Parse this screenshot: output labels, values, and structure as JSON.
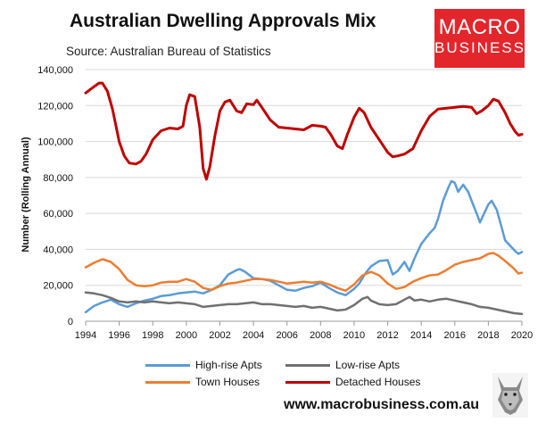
{
  "chart_data": {
    "type": "line",
    "title": "Australian Dwelling Approvals Mix",
    "subtitle": "Source: Australian Bureau of Statistics",
    "ylabel": "Number (Rolling Annual)",
    "xlabel": "",
    "xlim": [
      1994,
      2020
    ],
    "ylim": [
      0,
      140000
    ],
    "x_ticks": [
      1994,
      1996,
      1998,
      2000,
      2002,
      2004,
      2006,
      2008,
      2010,
      2012,
      2014,
      2016,
      2018,
      2020
    ],
    "x_tick_labels": [
      "1994",
      "1996",
      "1998",
      "2000",
      "2002",
      "2004",
      "2006",
      "2008",
      "2010",
      "2012",
      "2014",
      "2016",
      "2018",
      "2020"
    ],
    "y_ticks": [
      0,
      20000,
      40000,
      60000,
      80000,
      100000,
      120000,
      140000
    ],
    "y_tick_labels": [
      "0",
      "20,000",
      "40,000",
      "60,000",
      "80,000",
      "100,000",
      "120,000",
      "140,000"
    ],
    "legend_position": "bottom",
    "series": [
      {
        "name": "High-rise Apts",
        "color": "#5b9bd5",
        "points": [
          [
            1994,
            5000
          ],
          [
            1994.5,
            8500
          ],
          [
            1995,
            10500
          ],
          [
            1995.5,
            12000
          ],
          [
            1996,
            9500
          ],
          [
            1996.5,
            8000
          ],
          [
            1997,
            10000
          ],
          [
            1997.5,
            11500
          ],
          [
            1998,
            12500
          ],
          [
            1998.5,
            14000
          ],
          [
            1999,
            14500
          ],
          [
            1999.5,
            15500
          ],
          [
            2000,
            16000
          ],
          [
            2000.5,
            16500
          ],
          [
            2001,
            15500
          ],
          [
            2001.5,
            17500
          ],
          [
            2002,
            20000
          ],
          [
            2002.5,
            26000
          ],
          [
            2003,
            28500
          ],
          [
            2003.2,
            29000
          ],
          [
            2003.5,
            27500
          ],
          [
            2004,
            24000
          ],
          [
            2004.5,
            23500
          ],
          [
            2005,
            22500
          ],
          [
            2005.5,
            20000
          ],
          [
            2006,
            17500
          ],
          [
            2006.5,
            17000
          ],
          [
            2007,
            18500
          ],
          [
            2007.5,
            19500
          ],
          [
            2008,
            21500
          ],
          [
            2008.5,
            18500
          ],
          [
            2009,
            16000
          ],
          [
            2009.5,
            14500
          ],
          [
            2010,
            18000
          ],
          [
            2010.3,
            21000
          ],
          [
            2010.7,
            27000
          ],
          [
            2011,
            30500
          ],
          [
            2011.5,
            33500
          ],
          [
            2012,
            34000
          ],
          [
            2012.3,
            26000
          ],
          [
            2012.6,
            28000
          ],
          [
            2013,
            33000
          ],
          [
            2013.3,
            28000
          ],
          [
            2013.6,
            35000
          ],
          [
            2014,
            43000
          ],
          [
            2014.5,
            49000
          ],
          [
            2014.8,
            52000
          ],
          [
            2015,
            57000
          ],
          [
            2015.3,
            67000
          ],
          [
            2015.6,
            74000
          ],
          [
            2015.8,
            78000
          ],
          [
            2016,
            77000
          ],
          [
            2016.2,
            72000
          ],
          [
            2016.5,
            76000
          ],
          [
            2016.8,
            72000
          ],
          [
            2017,
            67000
          ],
          [
            2017.3,
            60000
          ],
          [
            2017.5,
            55000
          ],
          [
            2017.7,
            59000
          ],
          [
            2018,
            65000
          ],
          [
            2018.2,
            67000
          ],
          [
            2018.5,
            62000
          ],
          [
            2018.8,
            52000
          ],
          [
            2019,
            45000
          ],
          [
            2019.3,
            42000
          ],
          [
            2019.6,
            39000
          ],
          [
            2019.8,
            37500
          ],
          [
            2020,
            38500
          ]
        ]
      },
      {
        "name": "Low-rise Apts",
        "color": "#707070",
        "points": [
          [
            1994,
            16000
          ],
          [
            1994.5,
            15500
          ],
          [
            1995,
            14500
          ],
          [
            1995.5,
            13000
          ],
          [
            1996,
            11000
          ],
          [
            1996.5,
            10500
          ],
          [
            1997,
            11000
          ],
          [
            1997.5,
            10500
          ],
          [
            1998,
            11000
          ],
          [
            1998.5,
            10500
          ],
          [
            1999,
            10000
          ],
          [
            1999.5,
            10500
          ],
          [
            2000,
            10000
          ],
          [
            2000.5,
            9500
          ],
          [
            2001,
            8000
          ],
          [
            2001.5,
            8500
          ],
          [
            2002,
            9000
          ],
          [
            2002.5,
            9500
          ],
          [
            2003,
            9500
          ],
          [
            2003.5,
            10000
          ],
          [
            2004,
            10500
          ],
          [
            2004.5,
            9500
          ],
          [
            2005,
            9500
          ],
          [
            2005.5,
            9000
          ],
          [
            2006,
            8500
          ],
          [
            2006.5,
            8000
          ],
          [
            2007,
            8500
          ],
          [
            2007.5,
            7500
          ],
          [
            2008,
            8000
          ],
          [
            2008.5,
            7000
          ],
          [
            2009,
            6000
          ],
          [
            2009.5,
            6500
          ],
          [
            2010,
            9000
          ],
          [
            2010.5,
            12500
          ],
          [
            2010.8,
            13500
          ],
          [
            2011,
            11500
          ],
          [
            2011.5,
            9500
          ],
          [
            2012,
            9000
          ],
          [
            2012.5,
            9500
          ],
          [
            2013,
            12000
          ],
          [
            2013.3,
            13500
          ],
          [
            2013.6,
            11500
          ],
          [
            2014,
            12000
          ],
          [
            2014.5,
            11000
          ],
          [
            2015,
            12000
          ],
          [
            2015.5,
            12500
          ],
          [
            2016,
            11500
          ],
          [
            2016.5,
            10500
          ],
          [
            2017,
            9500
          ],
          [
            2017.5,
            8000
          ],
          [
            2018,
            7500
          ],
          [
            2018.5,
            6500
          ],
          [
            2019,
            5500
          ],
          [
            2019.5,
            4500
          ],
          [
            2020,
            4000
          ]
        ]
      },
      {
        "name": "Town Houses",
        "color": "#ed7d31",
        "points": [
          [
            1994,
            30000
          ],
          [
            1994.5,
            32500
          ],
          [
            1995,
            34500
          ],
          [
            1995.5,
            33000
          ],
          [
            1996,
            29000
          ],
          [
            1996.5,
            23000
          ],
          [
            1997,
            20000
          ],
          [
            1997.5,
            19500
          ],
          [
            1998,
            20000
          ],
          [
            1998.5,
            21500
          ],
          [
            1999,
            22000
          ],
          [
            1999.5,
            22000
          ],
          [
            2000,
            23500
          ],
          [
            2000.5,
            22000
          ],
          [
            2001,
            18500
          ],
          [
            2001.5,
            17500
          ],
          [
            2002,
            19500
          ],
          [
            2002.5,
            21000
          ],
          [
            2003,
            21500
          ],
          [
            2003.5,
            22500
          ],
          [
            2004,
            23500
          ],
          [
            2004.5,
            23500
          ],
          [
            2005,
            23000
          ],
          [
            2005.5,
            22000
          ],
          [
            2006,
            21000
          ],
          [
            2006.5,
            21500
          ],
          [
            2007,
            22000
          ],
          [
            2007.5,
            21500
          ],
          [
            2008,
            22000
          ],
          [
            2008.5,
            20500
          ],
          [
            2009,
            18500
          ],
          [
            2009.5,
            17000
          ],
          [
            2010,
            20500
          ],
          [
            2010.5,
            25500
          ],
          [
            2011,
            27500
          ],
          [
            2011.5,
            25500
          ],
          [
            2012,
            21000
          ],
          [
            2012.5,
            18000
          ],
          [
            2013,
            19000
          ],
          [
            2013.5,
            22000
          ],
          [
            2014,
            24000
          ],
          [
            2014.5,
            25500
          ],
          [
            2015,
            26000
          ],
          [
            2015.5,
            28500
          ],
          [
            2016,
            31500
          ],
          [
            2016.5,
            33000
          ],
          [
            2017,
            34000
          ],
          [
            2017.5,
            35000
          ],
          [
            2018,
            37500
          ],
          [
            2018.3,
            38000
          ],
          [
            2018.6,
            36500
          ],
          [
            2019,
            33500
          ],
          [
            2019.5,
            29500
          ],
          [
            2019.8,
            26500
          ],
          [
            2020,
            27000
          ]
        ]
      },
      {
        "name": "Detached Houses",
        "color": "#c00000",
        "points": [
          [
            1994,
            127000
          ],
          [
            1994.5,
            130500
          ],
          [
            1994.8,
            132500
          ],
          [
            1995,
            132500
          ],
          [
            1995.3,
            128000
          ],
          [
            1995.6,
            118000
          ],
          [
            1996,
            100000
          ],
          [
            1996.3,
            92000
          ],
          [
            1996.6,
            88000
          ],
          [
            1997,
            87500
          ],
          [
            1997.3,
            89000
          ],
          [
            1997.6,
            93000
          ],
          [
            1998,
            101000
          ],
          [
            1998.5,
            106000
          ],
          [
            1999,
            107500
          ],
          [
            1999.5,
            107000
          ],
          [
            1999.8,
            108500
          ],
          [
            2000,
            120000
          ],
          [
            2000.2,
            126000
          ],
          [
            2000.5,
            125000
          ],
          [
            2000.8,
            108000
          ],
          [
            2001,
            85000
          ],
          [
            2001.2,
            79000
          ],
          [
            2001.4,
            86000
          ],
          [
            2001.7,
            103000
          ],
          [
            2002,
            117000
          ],
          [
            2002.3,
            122000
          ],
          [
            2002.6,
            123000
          ],
          [
            2003,
            117000
          ],
          [
            2003.3,
            116000
          ],
          [
            2003.6,
            121000
          ],
          [
            2004,
            120500
          ],
          [
            2004.2,
            123000
          ],
          [
            2004.5,
            119000
          ],
          [
            2005,
            112000
          ],
          [
            2005.5,
            108000
          ],
          [
            2006,
            107500
          ],
          [
            2006.5,
            107000
          ],
          [
            2007,
            106500
          ],
          [
            2007.5,
            109000
          ],
          [
            2008,
            108500
          ],
          [
            2008.3,
            108000
          ],
          [
            2008.6,
            104000
          ],
          [
            2009,
            97500
          ],
          [
            2009.3,
            96000
          ],
          [
            2009.6,
            104000
          ],
          [
            2010,
            113500
          ],
          [
            2010.3,
            118500
          ],
          [
            2010.6,
            116000
          ],
          [
            2011,
            108000
          ],
          [
            2011.5,
            101000
          ],
          [
            2012,
            94000
          ],
          [
            2012.3,
            91500
          ],
          [
            2012.6,
            92000
          ],
          [
            2013,
            93000
          ],
          [
            2013.5,
            96000
          ],
          [
            2014,
            106000
          ],
          [
            2014.5,
            114000
          ],
          [
            2015,
            118000
          ],
          [
            2015.5,
            118500
          ],
          [
            2016,
            119000
          ],
          [
            2016.5,
            119500
          ],
          [
            2017,
            119000
          ],
          [
            2017.3,
            115500
          ],
          [
            2017.6,
            117000
          ],
          [
            2018,
            120000
          ],
          [
            2018.3,
            123500
          ],
          [
            2018.6,
            122500
          ],
          [
            2019,
            116000
          ],
          [
            2019.3,
            110000
          ],
          [
            2019.6,
            105500
          ],
          [
            2019.8,
            103500
          ],
          [
            2020,
            104000
          ]
        ]
      }
    ]
  },
  "branding": {
    "logo_line1": "MACRO",
    "logo_line2": "BUSINESS",
    "logo_color": "#e3262b",
    "website": "www.macrobusiness.com.au"
  },
  "icons": {
    "mascot": "wolf-icon"
  }
}
